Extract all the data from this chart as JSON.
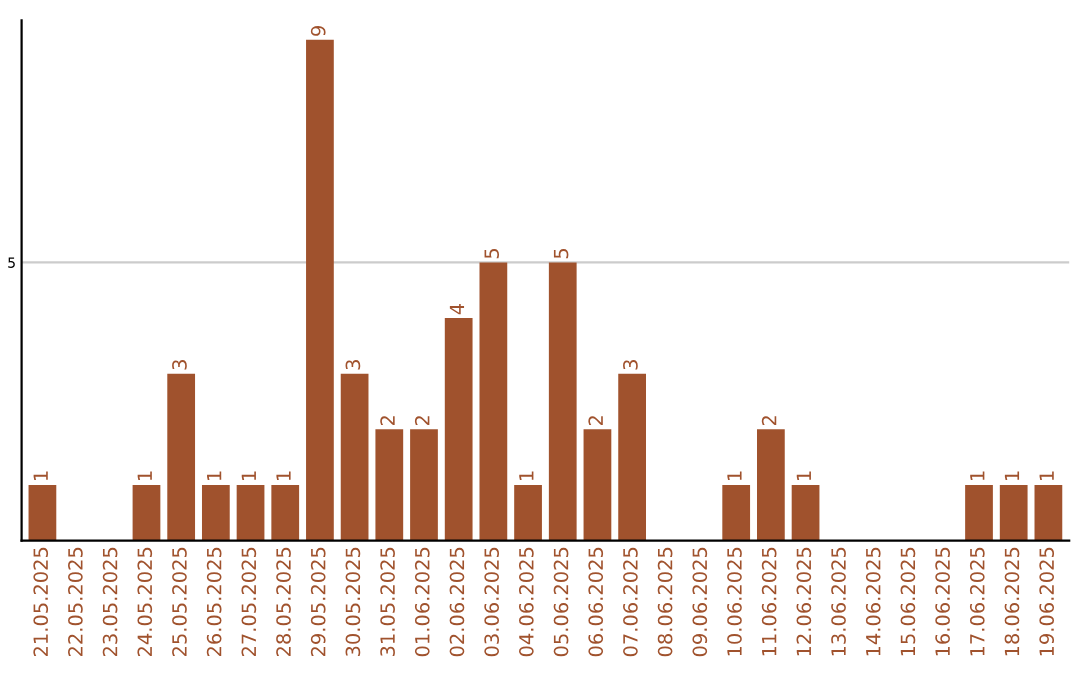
{
  "chart_data": {
    "type": "bar",
    "categories": [
      "21.05.2025",
      "22.05.2025",
      "23.05.2025",
      "24.05.2025",
      "25.05.2025",
      "26.05.2025",
      "27.05.2025",
      "28.05.2025",
      "29.05.2025",
      "30.05.2025",
      "31.05.2025",
      "01.06.2025",
      "02.06.2025",
      "03.06.2025",
      "04.06.2025",
      "05.06.2025",
      "06.06.2025",
      "07.06.2025",
      "08.06.2025",
      "09.06.2025",
      "10.06.2025",
      "11.06.2025",
      "12.06.2025",
      "13.06.2025",
      "14.06.2025",
      "15.06.2025",
      "16.06.2025",
      "17.06.2025",
      "18.06.2025",
      "19.06.2025"
    ],
    "values": [
      1,
      0,
      0,
      1,
      3,
      1,
      1,
      1,
      9,
      3,
      2,
      2,
      4,
      5,
      1,
      5,
      2,
      3,
      0,
      0,
      1,
      2,
      1,
      0,
      0,
      0,
      0,
      1,
      1,
      1
    ],
    "value_labels": [
      "1",
      null,
      null,
      "1",
      "3",
      "1",
      "1",
      "1",
      "9",
      "3",
      "2",
      "2",
      "4",
      "5",
      "1",
      "5",
      "2",
      "3",
      null,
      null,
      "1",
      "2",
      "1",
      null,
      null,
      null,
      null,
      "1",
      "1",
      "1"
    ],
    "color": "#a0522d",
    "ylim": [
      0,
      9.35
    ],
    "yticks": [
      5
    ],
    "grid": "y"
  }
}
